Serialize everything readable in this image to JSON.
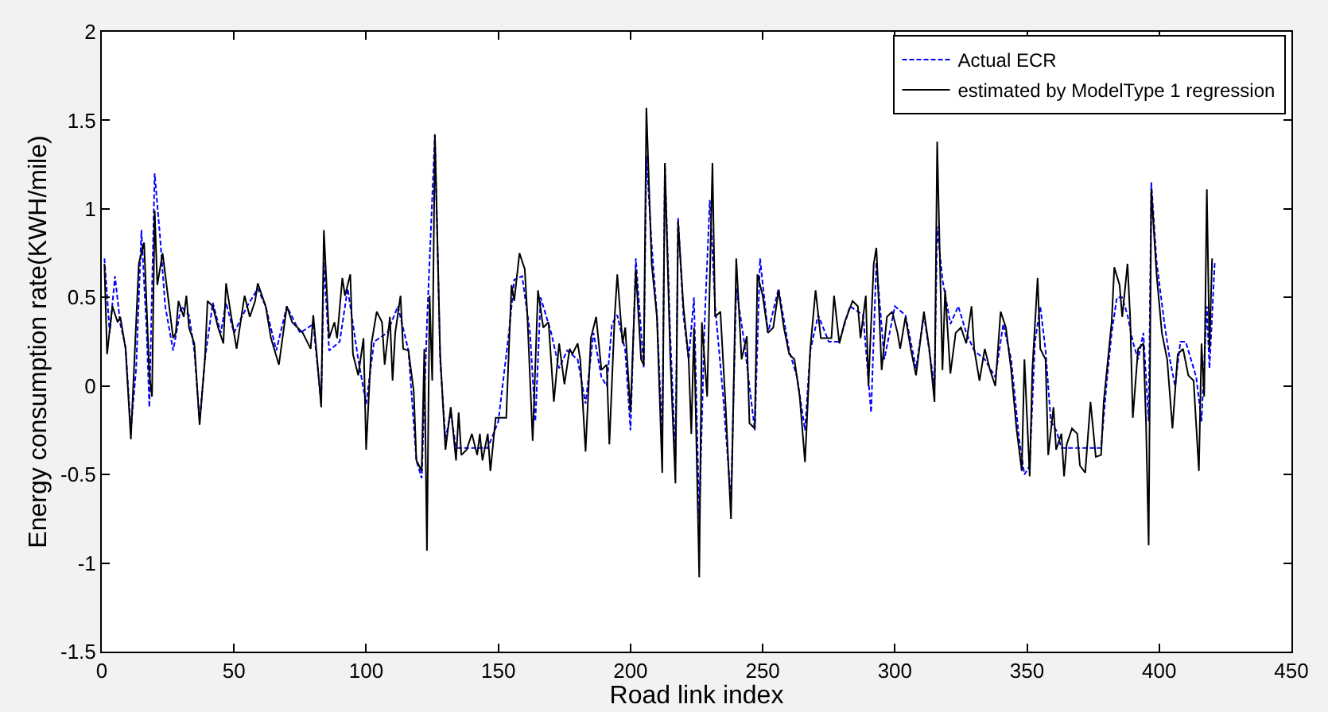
{
  "chart_data": {
    "type": "line",
    "xlabel": "Road link index",
    "ylabel": "Energy consumption rate(KWH/mile)",
    "xlim": [
      0,
      450
    ],
    "xticks": [
      0,
      50,
      100,
      150,
      200,
      250,
      300,
      350,
      400,
      450
    ],
    "ylim": [
      -1.5,
      2
    ],
    "yticks": [
      -1.5,
      -1,
      -0.5,
      0,
      0.5,
      1,
      1.5,
      2
    ],
    "grid": false,
    "legend": "top right",
    "marker": "none",
    "series": [
      {
        "name": "Actual ECR",
        "color": "#0000ff",
        "line_style": "dashed",
        "x": [
          1,
          3,
          5,
          7,
          9,
          11,
          13,
          15,
          17,
          18,
          20,
          22,
          24,
          27,
          30,
          33,
          35,
          37,
          39,
          42,
          45,
          47,
          50,
          55,
          59,
          62,
          66,
          70,
          75,
          80,
          83,
          84,
          86,
          90,
          93,
          97,
          100,
          103,
          108,
          112,
          116,
          119,
          121,
          123,
          126,
          128,
          130,
          132,
          134,
          140,
          146,
          150,
          154,
          156,
          159,
          162,
          164,
          166,
          170,
          173,
          176,
          180,
          183,
          186,
          189,
          191,
          193,
          195,
          198,
          200,
          202,
          205,
          206,
          208,
          210,
          212,
          213,
          215,
          217,
          218,
          220,
          222,
          224,
          226,
          228,
          230,
          232,
          235,
          238,
          240,
          243,
          247,
          249,
          252,
          256,
          260,
          263,
          266,
          268,
          271,
          275,
          279,
          283,
          288,
          291,
          293,
          296,
          300,
          304,
          308,
          311,
          315,
          316,
          318,
          321,
          324,
          327,
          330,
          334,
          338,
          341,
          344,
          347,
          349,
          351,
          353,
          355,
          357,
          359,
          361,
          363,
          370,
          375,
          378,
          380,
          382,
          384,
          386,
          388,
          390,
          392,
          394,
          396,
          397,
          399,
          402,
          404,
          406,
          408,
          410,
          412,
          414,
          416,
          418,
          419,
          421
        ],
        "values": [
          0.72,
          0.3,
          0.62,
          0.35,
          0.22,
          -0.25,
          0.1,
          0.88,
          0.3,
          -0.12,
          1.2,
          0.85,
          0.45,
          0.2,
          0.45,
          0.4,
          0.2,
          -0.2,
          0.15,
          0.47,
          0.3,
          0.47,
          0.3,
          0.45,
          0.55,
          0.45,
          0.2,
          0.45,
          0.3,
          0.35,
          -0.1,
          0.7,
          0.2,
          0.25,
          0.55,
          0.15,
          -0.1,
          0.25,
          0.3,
          0.45,
          0.2,
          -0.42,
          -0.52,
          0.35,
          1.42,
          0.15,
          -0.3,
          -0.15,
          -0.35,
          -0.35,
          -0.35,
          -0.2,
          0.3,
          0.6,
          0.62,
          0.3,
          -0.2,
          0.5,
          0.3,
          0.1,
          0.2,
          0.15,
          -0.1,
          0.3,
          0.05,
          0.0,
          0.35,
          0.4,
          0.2,
          -0.25,
          0.72,
          0.1,
          1.3,
          0.8,
          0.4,
          -0.3,
          1.25,
          0.3,
          -0.4,
          0.95,
          0.4,
          0.15,
          0.5,
          -0.75,
          0.35,
          1.05,
          0.45,
          -0.05,
          -0.65,
          0.55,
          0.25,
          -0.25,
          0.72,
          0.3,
          0.55,
          0.2,
          0.05,
          -0.25,
          0.2,
          0.4,
          0.25,
          0.25,
          0.45,
          0.4,
          -0.15,
          0.7,
          0.15,
          0.45,
          0.4,
          0.1,
          0.4,
          0.0,
          0.9,
          0.6,
          0.35,
          0.45,
          0.3,
          0.2,
          0.15,
          0.05,
          0.35,
          0.15,
          -0.3,
          -0.5,
          -0.45,
          0.25,
          0.45,
          0.2,
          -0.2,
          -0.25,
          -0.35,
          -0.35,
          -0.35,
          -0.35,
          0.0,
          0.3,
          0.5,
          0.5,
          0.4,
          0.25,
          0.15,
          0.3,
          -0.2,
          1.15,
          0.7,
          0.35,
          0.15,
          0.0,
          0.25,
          0.25,
          0.15,
          0.05,
          -0.2,
          0.45,
          0.1,
          0.7
        ]
      },
      {
        "name": "estimated by ModelType 1 regression",
        "color": "#000000",
        "line_style": "solid",
        "x": [
          1,
          2,
          4,
          6,
          7,
          9,
          11,
          14,
          16,
          18,
          19,
          20,
          21,
          23,
          25,
          27,
          28,
          29,
          31,
          32,
          33,
          35,
          37,
          39,
          40,
          42,
          44,
          46,
          47,
          49,
          51,
          54,
          56,
          58,
          59,
          62,
          64,
          67,
          70,
          72,
          76,
          79,
          80,
          82,
          83,
          84,
          86,
          88,
          89,
          91,
          92,
          94,
          95,
          97,
          99,
          100,
          102,
          104,
          106,
          107,
          109,
          110,
          111,
          113,
          114,
          116,
          118,
          119,
          121,
          122,
          123,
          124,
          125,
          126,
          128,
          130,
          132,
          134,
          135,
          136,
          138,
          140,
          142,
          143,
          144,
          146,
          147,
          149,
          151,
          153,
          154,
          155,
          156,
          158,
          160,
          161,
          163,
          165,
          167,
          169,
          171,
          173,
          175,
          177,
          178,
          180,
          181,
          183,
          185,
          187,
          189,
          191,
          192,
          194,
          195,
          197,
          198,
          200,
          202,
          204,
          205,
          206,
          208,
          210,
          212,
          213,
          215,
          217,
          218,
          220,
          222,
          223,
          224,
          226,
          227,
          229,
          231,
          232,
          234,
          236,
          238,
          240,
          242,
          244,
          245,
          247,
          248,
          250,
          252,
          254,
          256,
          258,
          260,
          262,
          264,
          266,
          268,
          270,
          272,
          274,
          276,
          277,
          279,
          281,
          284,
          286,
          287,
          289,
          290,
          292,
          293,
          295,
          297,
          299,
          301,
          302,
          304,
          306,
          308,
          311,
          313,
          315,
          316,
          318,
          319,
          321,
          323,
          325,
          327,
          329,
          330,
          332,
          334,
          336,
          338,
          340,
          342,
          344,
          346,
          348,
          349,
          351,
          352,
          354,
          355,
          357,
          358,
          360,
          361,
          363,
          364,
          365,
          367,
          369,
          370,
          372,
          374,
          376,
          378,
          379,
          381,
          382,
          383,
          385,
          386,
          388,
          389,
          390,
          392,
          394,
          395,
          396,
          397,
          399,
          401,
          403,
          405,
          407,
          409,
          411,
          413,
          415,
          416,
          417,
          418,
          419,
          420
        ],
        "values": [
          0.69,
          0.18,
          0.45,
          0.36,
          0.39,
          0.21,
          -0.3,
          0.69,
          0.81,
          0.06,
          -0.06,
          0.99,
          0.57,
          0.75,
          0.51,
          0.27,
          0.3,
          0.48,
          0.39,
          0.51,
          0.33,
          0.24,
          -0.22,
          0.15,
          0.48,
          0.45,
          0.33,
          0.24,
          0.58,
          0.39,
          0.21,
          0.51,
          0.39,
          0.48,
          0.58,
          0.45,
          0.27,
          0.12,
          0.45,
          0.36,
          0.3,
          0.21,
          0.4,
          0.06,
          -0.12,
          0.88,
          0.27,
          0.36,
          0.27,
          0.61,
          0.51,
          0.63,
          0.18,
          0.06,
          0.27,
          -0.36,
          0.24,
          0.42,
          0.36,
          0.12,
          0.39,
          0.03,
          0.3,
          0.51,
          0.21,
          0.2,
          -0.03,
          -0.42,
          -0.48,
          0.21,
          -0.93,
          0.51,
          0.03,
          1.42,
          0.18,
          -0.36,
          -0.12,
          -0.42,
          -0.15,
          -0.39,
          -0.36,
          -0.27,
          -0.39,
          -0.27,
          -0.42,
          -0.27,
          -0.48,
          -0.18,
          -0.18,
          -0.18,
          0.21,
          0.57,
          0.48,
          0.75,
          0.66,
          0.39,
          -0.31,
          0.54,
          0.33,
          0.36,
          -0.09,
          0.24,
          0.01,
          0.21,
          0.18,
          0.24,
          0.15,
          -0.37,
          0.27,
          0.39,
          0.09,
          0.12,
          -0.33,
          0.39,
          0.63,
          0.24,
          0.33,
          -0.15,
          0.66,
          0.15,
          0.12,
          1.57,
          0.69,
          0.39,
          -0.49,
          1.26,
          0.18,
          -0.55,
          0.93,
          0.45,
          0.15,
          -0.27,
          0.33,
          -1.08,
          0.36,
          -0.06,
          1.26,
          0.39,
          0.42,
          -0.12,
          -0.75,
          0.72,
          0.15,
          0.28,
          -0.21,
          -0.24,
          0.63,
          0.51,
          0.3,
          0.33,
          0.54,
          0.33,
          0.18,
          0.15,
          -0.06,
          -0.43,
          0.21,
          0.54,
          0.27,
          0.27,
          0.27,
          0.51,
          0.24,
          0.36,
          0.48,
          0.45,
          0.27,
          0.51,
          0.0,
          0.69,
          0.78,
          0.09,
          0.39,
          0.42,
          0.3,
          0.21,
          0.39,
          0.21,
          0.06,
          0.42,
          0.21,
          -0.09,
          1.38,
          0.09,
          0.54,
          0.07,
          0.3,
          0.33,
          0.24,
          0.45,
          0.21,
          0.03,
          0.21,
          0.09,
          0.0,
          0.42,
          0.33,
          0.09,
          -0.24,
          -0.48,
          0.15,
          -0.51,
          0.09,
          0.61,
          0.21,
          0.15,
          -0.39,
          -0.12,
          -0.36,
          -0.27,
          -0.51,
          -0.33,
          -0.24,
          -0.27,
          -0.45,
          -0.49,
          -0.09,
          -0.4,
          -0.39,
          -0.09,
          0.21,
          0.36,
          0.67,
          0.57,
          0.39,
          0.69,
          0.39,
          -0.18,
          0.21,
          0.24,
          -0.21,
          -0.9,
          1.11,
          0.63,
          0.3,
          0.15,
          -0.24,
          0.18,
          0.21,
          0.06,
          0.03,
          -0.48,
          0.24,
          -0.06,
          1.11,
          0.21,
          0.72
        ]
      }
    ]
  }
}
